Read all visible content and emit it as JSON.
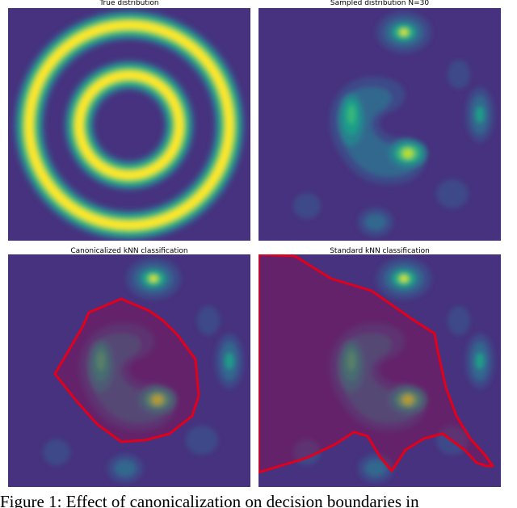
{
  "panels": [
    {
      "title": "True distribution"
    },
    {
      "title": "Sampled distribution N=30"
    },
    {
      "title": "Canonicalized kNN classification"
    },
    {
      "title": "Standard kNN classification"
    }
  ],
  "caption": "Figure 1: Effect of canonicalization on decision boundaries in"
}
